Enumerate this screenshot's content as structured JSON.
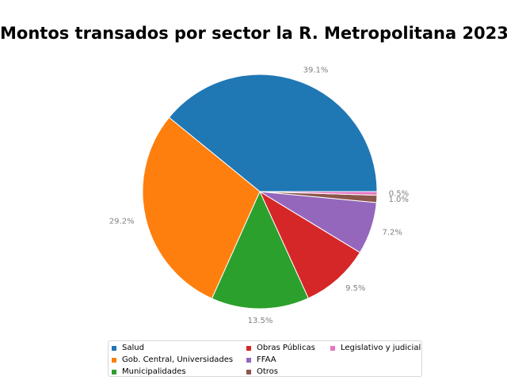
{
  "chart_data": {
    "type": "pie",
    "title": "Montos transados por sector la R. Metropolitana 2023",
    "slices": [
      {
        "name": "Salud",
        "value": 39.1,
        "label": "39.1%",
        "color": "#1f77b4"
      },
      {
        "name": "Gob. Central, Universidades",
        "value": 29.2,
        "label": "29.2%",
        "color": "#ff7f0e"
      },
      {
        "name": "Municipalidades",
        "value": 13.5,
        "label": "13.5%",
        "color": "#2ca02c"
      },
      {
        "name": "Obras Públicas",
        "value": 9.5,
        "label": "9.5%",
        "color": "#d62728"
      },
      {
        "name": "FFAA",
        "value": 7.2,
        "label": "7.2%",
        "color": "#9467bd"
      },
      {
        "name": "Otros",
        "value": 1.0,
        "label": "1.0%",
        "color": "#8c564b"
      },
      {
        "name": "Legislativo y judicial",
        "value": 0.5,
        "label": "0.5%",
        "color": "#e377c2"
      }
    ],
    "start_angle": "3 o'clock",
    "direction": "counterclockwise",
    "legend_position": "bottom"
  }
}
